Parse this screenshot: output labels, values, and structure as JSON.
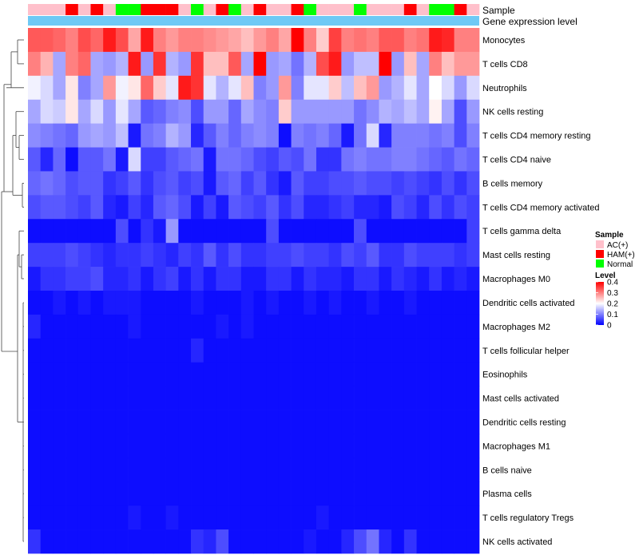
{
  "chart_data": {
    "type": "heatmap",
    "title": "",
    "annotation_tracks": [
      "Sample",
      "Gene expression level"
    ],
    "rows": [
      "Monocytes",
      "T cells CD8",
      "Neutrophils",
      "NK cells resting",
      "T cells CD4 memory resting",
      "T cells CD4 naive",
      "B cells memory",
      "T cells CD4 memory activated",
      "T cells gamma delta",
      "Mast cells resting",
      "Macrophages M0",
      "Dendritic cells activated",
      "Macrophages M2",
      "T cells follicular helper",
      "Eosinophils",
      "Mast cells activated",
      "Dendritic cells resting",
      "Macrophages M1",
      "B cells naive",
      "Plasma cells",
      "T cells regulatory  Tregs",
      "NK cells activated"
    ],
    "sample_groups": [
      "AC(+)",
      "AC(+)",
      "AC(+)",
      "HAM(+)",
      "AC(+)",
      "HAM(+)",
      "AC(+)",
      "Normal",
      "Normal",
      "HAM(+)",
      "HAM(+)",
      "HAM(+)",
      "AC(+)",
      "Normal",
      "AC(+)",
      "HAM(+)",
      "Normal",
      "AC(+)",
      "HAM(+)",
      "AC(+)",
      "AC(+)",
      "HAM(+)",
      "Normal",
      "AC(+)",
      "AC(+)",
      "AC(+)",
      "Normal",
      "AC(+)",
      "AC(+)",
      "AC(+)",
      "HAM(+)",
      "AC(+)",
      "Normal",
      "Normal",
      "HAM(+)",
      "AC(+)"
    ],
    "values": [
      [
        0.33,
        0.33,
        0.32,
        0.3,
        0.34,
        0.32,
        0.38,
        0.34,
        0.27,
        0.38,
        0.3,
        0.28,
        0.3,
        0.3,
        0.29,
        0.28,
        0.27,
        0.25,
        0.28,
        0.3,
        0.27,
        0.4,
        0.3,
        0.24,
        0.35,
        0.3,
        0.31,
        0.3,
        0.33,
        0.33,
        0.3,
        0.31,
        0.38,
        0.37,
        0.3,
        0.3
      ],
      [
        0.3,
        0.26,
        0.13,
        0.3,
        0.32,
        0.13,
        0.12,
        0.14,
        0.38,
        0.12,
        0.36,
        0.14,
        0.12,
        0.36,
        0.25,
        0.25,
        0.33,
        0.13,
        0.4,
        0.12,
        0.13,
        0.09,
        0.14,
        0.34,
        0.38,
        0.12,
        0.15,
        0.15,
        0.4,
        0.12,
        0.25,
        0.13,
        0.3,
        0.25,
        0.28,
        0.28
      ],
      [
        0.19,
        0.17,
        0.13,
        0.22,
        0.1,
        0.13,
        0.28,
        0.19,
        0.22,
        0.32,
        0.24,
        0.18,
        0.38,
        0.36,
        0.18,
        0.14,
        0.18,
        0.25,
        0.1,
        0.12,
        0.28,
        0.1,
        0.18,
        0.18,
        0.24,
        0.15,
        0.25,
        0.28,
        0.12,
        0.14,
        0.18,
        0.13,
        0.2,
        0.17,
        0.12,
        0.17
      ],
      [
        0.13,
        0.17,
        0.16,
        0.22,
        0.13,
        0.17,
        0.12,
        0.18,
        0.13,
        0.07,
        0.08,
        0.1,
        0.11,
        0.06,
        0.12,
        0.12,
        0.08,
        0.13,
        0.11,
        0.1,
        0.24,
        0.12,
        0.12,
        0.12,
        0.12,
        0.12,
        0.09,
        0.11,
        0.14,
        0.13,
        0.15,
        0.13,
        0.21,
        0.13,
        0.06,
        0.12
      ],
      [
        0.11,
        0.1,
        0.09,
        0.08,
        0.12,
        0.13,
        0.12,
        0.15,
        0.02,
        0.09,
        0.1,
        0.14,
        0.12,
        0.03,
        0.07,
        0.1,
        0.08,
        0.1,
        0.11,
        0.1,
        0.01,
        0.1,
        0.09,
        0.1,
        0.08,
        0.02,
        0.09,
        0.17,
        0.03,
        0.1,
        0.1,
        0.1,
        0.09,
        0.1,
        0.06,
        0.1
      ],
      [
        0.07,
        0.03,
        0.08,
        0.01,
        0.07,
        0.07,
        0.09,
        0.02,
        0.17,
        0.05,
        0.05,
        0.07,
        0.08,
        0.09,
        0.02,
        0.09,
        0.09,
        0.08,
        0.06,
        0.05,
        0.07,
        0.06,
        0.09,
        0.04,
        0.04,
        0.09,
        0.1,
        0.09,
        0.09,
        0.1,
        0.1,
        0.09,
        0.08,
        0.07,
        0.09,
        0.08
      ],
      [
        0.08,
        0.09,
        0.08,
        0.06,
        0.07,
        0.07,
        0.04,
        0.05,
        0.07,
        0.04,
        0.06,
        0.07,
        0.05,
        0.06,
        0.02,
        0.07,
        0.08,
        0.05,
        0.07,
        0.04,
        0.02,
        0.07,
        0.05,
        0.05,
        0.06,
        0.06,
        0.07,
        0.06,
        0.06,
        0.05,
        0.06,
        0.05,
        0.04,
        0.06,
        0.04,
        0.06
      ],
      [
        0.06,
        0.07,
        0.07,
        0.06,
        0.05,
        0.07,
        0.03,
        0.02,
        0.05,
        0.03,
        0.07,
        0.08,
        0.06,
        0.02,
        0.05,
        0.02,
        0.07,
        0.06,
        0.05,
        0.07,
        0.04,
        0.06,
        0.03,
        0.03,
        0.04,
        0.05,
        0.03,
        0.03,
        0.02,
        0.06,
        0.05,
        0.03,
        0.06,
        0.04,
        0.06,
        0.05
      ],
      [
        0.01,
        0.01,
        0.01,
        0.01,
        0.01,
        0.01,
        0.01,
        0.06,
        0.01,
        0.04,
        0.02,
        0.12,
        0.01,
        0.01,
        0.01,
        0.01,
        0.01,
        0.01,
        0.01,
        0.06,
        0.01,
        0.01,
        0.01,
        0.01,
        0.01,
        0.01,
        0.06,
        0.01,
        0.01,
        0.01,
        0.01,
        0.01,
        0.01,
        0.01,
        0.01,
        0.05
      ],
      [
        0.05,
        0.05,
        0.05,
        0.06,
        0.05,
        0.04,
        0.03,
        0.04,
        0.04,
        0.05,
        0.04,
        0.03,
        0.05,
        0.04,
        0.07,
        0.04,
        0.06,
        0.04,
        0.04,
        0.05,
        0.05,
        0.06,
        0.05,
        0.05,
        0.04,
        0.06,
        0.05,
        0.07,
        0.04,
        0.04,
        0.06,
        0.05,
        0.05,
        0.05,
        0.04,
        0.05
      ],
      [
        0.02,
        0.04,
        0.04,
        0.05,
        0.05,
        0.06,
        0.03,
        0.03,
        0.04,
        0.02,
        0.04,
        0.05,
        0.02,
        0.04,
        0.02,
        0.04,
        0.04,
        0.02,
        0.02,
        0.04,
        0.04,
        0.02,
        0.04,
        0.03,
        0.03,
        0.02,
        0.04,
        0.04,
        0.02,
        0.04,
        0.03,
        0.02,
        0.04,
        0.02,
        0.03,
        0.02
      ],
      [
        0.01,
        0.01,
        0.02,
        0.01,
        0.02,
        0.01,
        0.02,
        0.02,
        0.02,
        0.01,
        0.01,
        0.01,
        0.01,
        0.02,
        0.01,
        0.01,
        0.01,
        0.02,
        0.01,
        0.02,
        0.01,
        0.01,
        0.02,
        0.01,
        0.02,
        0.01,
        0.01,
        0.02,
        0.01,
        0.01,
        0.02,
        0.01,
        0.01,
        0.01,
        0.01,
        0.01
      ],
      [
        0.03,
        0.01,
        0.01,
        0.01,
        0.01,
        0.01,
        0.01,
        0.01,
        0.02,
        0.01,
        0.01,
        0.01,
        0.01,
        0.01,
        0.01,
        0.02,
        0.01,
        0.02,
        0.01,
        0.01,
        0.01,
        0.01,
        0.01,
        0.01,
        0.01,
        0.01,
        0.01,
        0.01,
        0.01,
        0.01,
        0.01,
        0.01,
        0.01,
        0.01,
        0.01,
        0.01
      ],
      [
        0.01,
        0.01,
        0.01,
        0.01,
        0.01,
        0.01,
        0.01,
        0.01,
        0.01,
        0.01,
        0.01,
        0.01,
        0.01,
        0.03,
        0.01,
        0.01,
        0.01,
        0.01,
        0.01,
        0.01,
        0.01,
        0.01,
        0.01,
        0.01,
        0.01,
        0.01,
        0.01,
        0.01,
        0.01,
        0.01,
        0.01,
        0.01,
        0.01,
        0.01,
        0.01,
        0.01
      ],
      [
        0.01,
        0.01,
        0.01,
        0.01,
        0.01,
        0.01,
        0.01,
        0.01,
        0.01,
        0.01,
        0.01,
        0.01,
        0.01,
        0.01,
        0.01,
        0.01,
        0.01,
        0.01,
        0.01,
        0.01,
        0.01,
        0.01,
        0.01,
        0.01,
        0.01,
        0.01,
        0.01,
        0.01,
        0.01,
        0.01,
        0.01,
        0.01,
        0.01,
        0.01,
        0.01,
        0.01
      ],
      [
        0.01,
        0.01,
        0.01,
        0.01,
        0.01,
        0.01,
        0.01,
        0.01,
        0.01,
        0.01,
        0.01,
        0.01,
        0.01,
        0.01,
        0.01,
        0.01,
        0.01,
        0.01,
        0.01,
        0.01,
        0.01,
        0.01,
        0.01,
        0.01,
        0.01,
        0.01,
        0.01,
        0.01,
        0.01,
        0.01,
        0.01,
        0.01,
        0.01,
        0.01,
        0.01,
        0.01
      ],
      [
        0.01,
        0.01,
        0.01,
        0.01,
        0.01,
        0.01,
        0.01,
        0.01,
        0.01,
        0.01,
        0.01,
        0.01,
        0.01,
        0.01,
        0.01,
        0.01,
        0.01,
        0.01,
        0.01,
        0.01,
        0.01,
        0.01,
        0.01,
        0.01,
        0.01,
        0.01,
        0.01,
        0.01,
        0.01,
        0.01,
        0.01,
        0.01,
        0.01,
        0.01,
        0.01,
        0.01
      ],
      [
        0.01,
        0.01,
        0.01,
        0.01,
        0.01,
        0.01,
        0.01,
        0.01,
        0.01,
        0.01,
        0.01,
        0.01,
        0.01,
        0.01,
        0.01,
        0.01,
        0.01,
        0.01,
        0.01,
        0.01,
        0.01,
        0.01,
        0.01,
        0.01,
        0.01,
        0.01,
        0.01,
        0.01,
        0.01,
        0.01,
        0.01,
        0.01,
        0.01,
        0.01,
        0.01,
        0.01
      ],
      [
        0.01,
        0.01,
        0.01,
        0.01,
        0.01,
        0.01,
        0.01,
        0.01,
        0.01,
        0.01,
        0.01,
        0.01,
        0.01,
        0.01,
        0.01,
        0.01,
        0.01,
        0.01,
        0.01,
        0.01,
        0.01,
        0.01,
        0.01,
        0.01,
        0.01,
        0.01,
        0.01,
        0.01,
        0.01,
        0.01,
        0.01,
        0.01,
        0.01,
        0.01,
        0.01,
        0.01
      ],
      [
        0.01,
        0.01,
        0.01,
        0.01,
        0.01,
        0.01,
        0.01,
        0.01,
        0.01,
        0.01,
        0.01,
        0.01,
        0.01,
        0.01,
        0.01,
        0.01,
        0.01,
        0.01,
        0.01,
        0.01,
        0.01,
        0.01,
        0.01,
        0.01,
        0.01,
        0.01,
        0.01,
        0.01,
        0.01,
        0.01,
        0.01,
        0.01,
        0.01,
        0.01,
        0.01,
        0.01
      ],
      [
        0.01,
        0.01,
        0.01,
        0.01,
        0.01,
        0.01,
        0.01,
        0.01,
        0.02,
        0.01,
        0.01,
        0.02,
        0.01,
        0.01,
        0.01,
        0.01,
        0.01,
        0.01,
        0.01,
        0.01,
        0.01,
        0.01,
        0.01,
        0.02,
        0.01,
        0.01,
        0.01,
        0.01,
        0.01,
        0.01,
        0.01,
        0.01,
        0.01,
        0.01,
        0.01,
        0.01
      ],
      [
        0.04,
        0.01,
        0.01,
        0.01,
        0.01,
        0.01,
        0.01,
        0.01,
        0.01,
        0.01,
        0.01,
        0.01,
        0.01,
        0.04,
        0.03,
        0.06,
        0.01,
        0.01,
        0.01,
        0.01,
        0.01,
        0.01,
        0.02,
        0.01,
        0.01,
        0.03,
        0.06,
        0.09,
        0.03,
        0.01,
        0.04,
        0.01,
        0.01,
        0.01,
        0.01,
        0.01
      ]
    ],
    "legend": {
      "sample_title": "Sample",
      "level_title": "Level",
      "groups": [
        {
          "name": "AC(+)",
          "color": "#FFC0CB"
        },
        {
          "name": "HAM(+)",
          "color": "#FF0000"
        },
        {
          "name": "Normal",
          "color": "#00FF00"
        }
      ],
      "ticks": [
        0.4,
        0.3,
        0.2,
        0.1,
        0
      ],
      "range": [
        0,
        0.4
      ]
    },
    "colors": {
      "low": "#0000FF",
      "mid": "#FFFFFF",
      "high": "#FF0000",
      "expression_track": "#6FC9F5"
    }
  }
}
